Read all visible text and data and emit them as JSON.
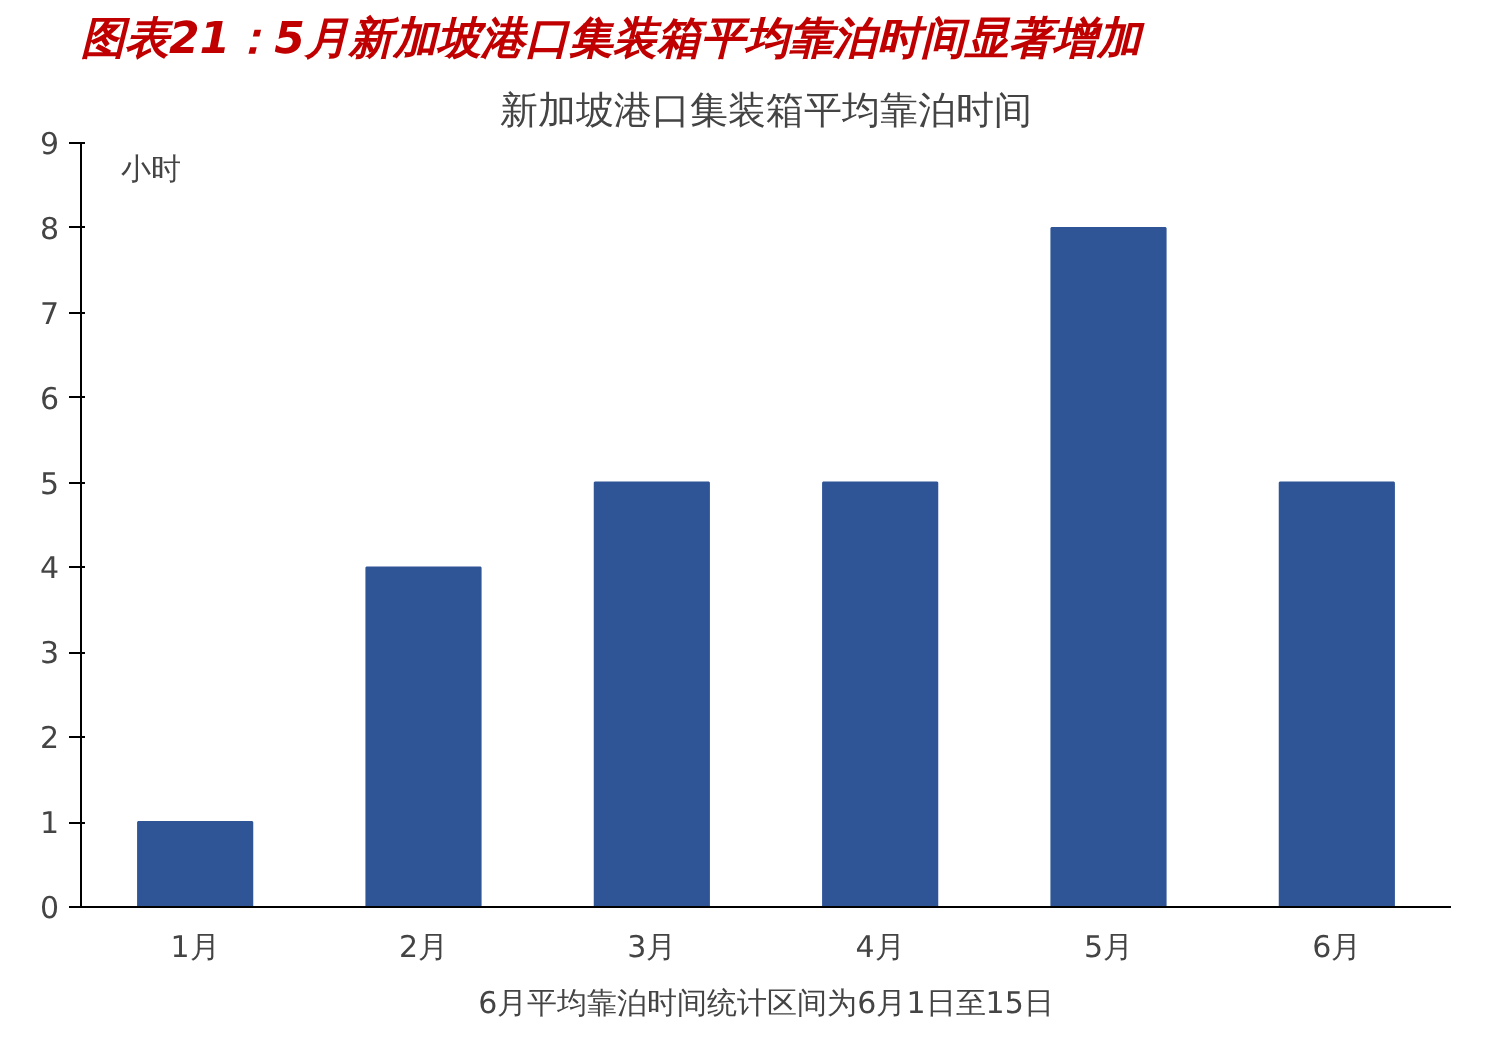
{
  "chart_data": {
    "type": "bar",
    "title": "新加坡港口集装箱平均靠泊时间",
    "subtitle": "图表21：5月新加坡港口集装箱平均靠泊时间显著增加",
    "ylabel": "小时",
    "categories": [
      "1月",
      "2月",
      "3月",
      "4月",
      "5月",
      "6月"
    ],
    "values": [
      1,
      4,
      5,
      5,
      8,
      5
    ],
    "color": "#2f5597",
    "ylim": [
      0,
      9
    ],
    "yticks": [
      0,
      1,
      2,
      3,
      4,
      5,
      6,
      7,
      8,
      9
    ],
    "grid": false,
    "annotations": [
      "6月平均靠泊时间统计区间为6月1日至15日"
    ]
  }
}
